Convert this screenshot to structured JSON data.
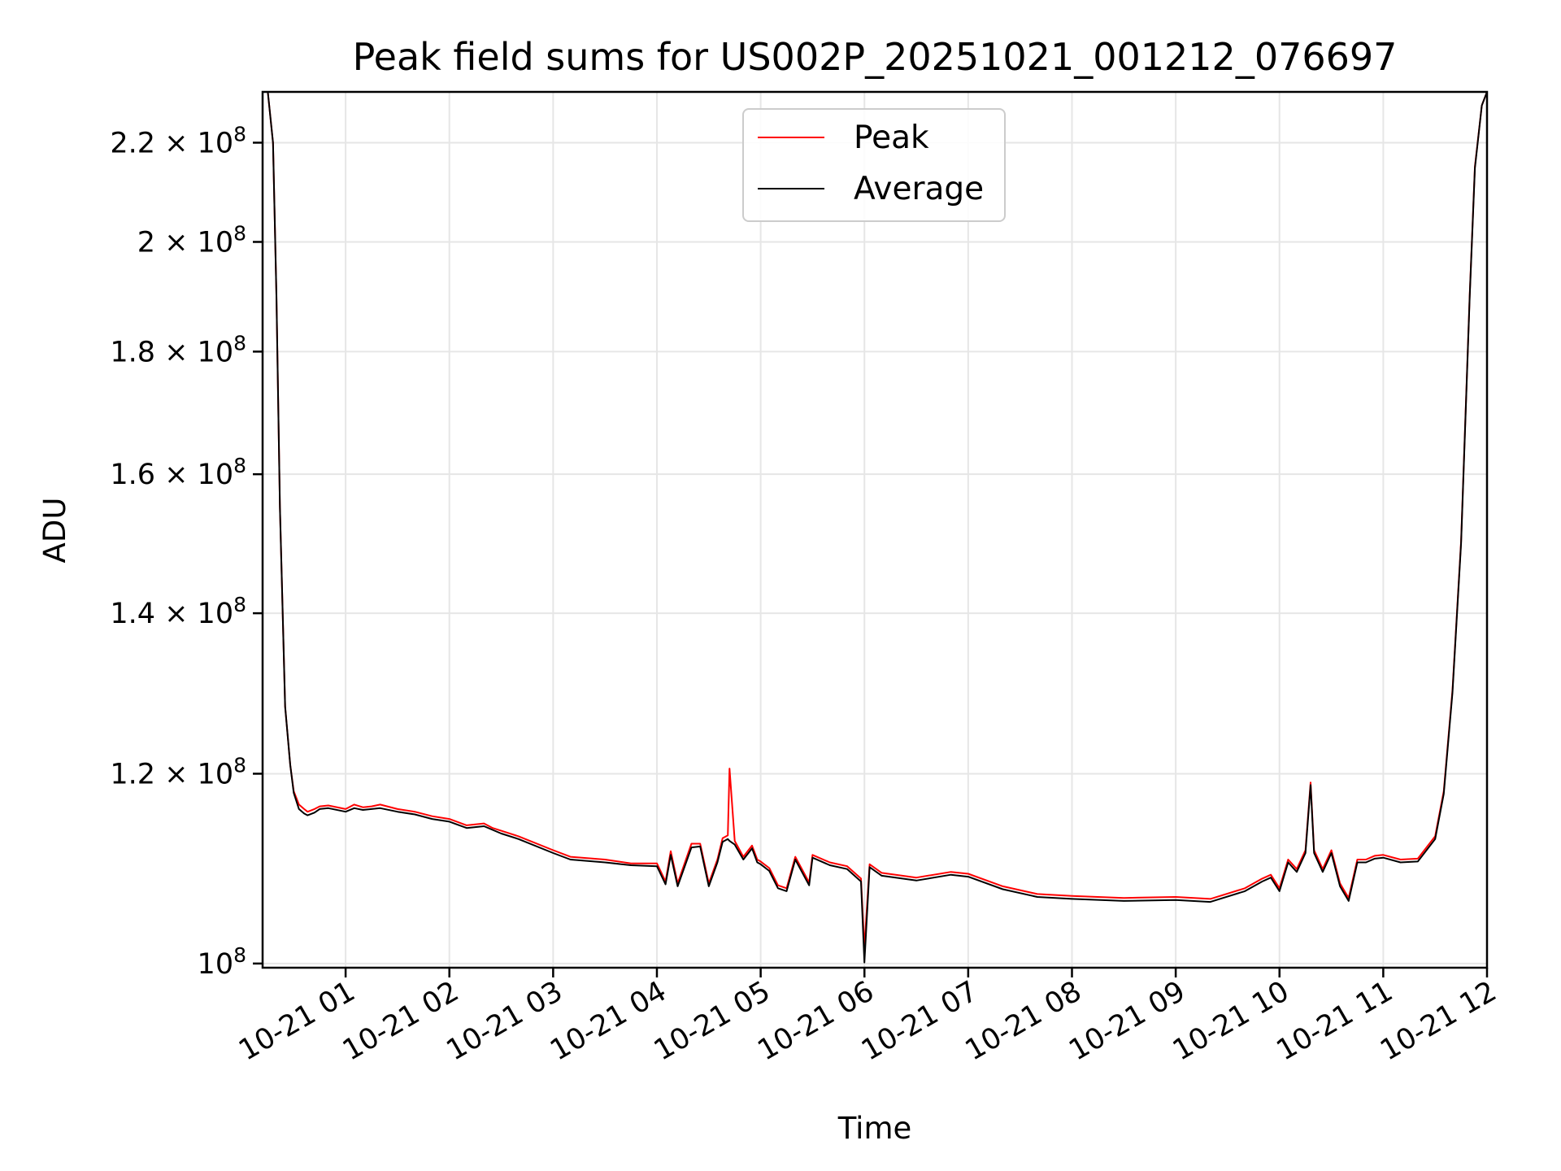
{
  "chart_data": {
    "type": "line",
    "title": "Peak field sums for US002P_20251021_001212_076697",
    "xlabel": "Time",
    "ylabel": "ADU",
    "y_scale": "log",
    "ylim": [
      99600000,
      231000000
    ],
    "xlim": [
      "10-21 00:12",
      "10-21 12:00"
    ],
    "x_ticks": [
      {
        "value": "10-21 01:00",
        "label": "10-21 01"
      },
      {
        "value": "10-21 02:00",
        "label": "10-21 02"
      },
      {
        "value": "10-21 03:00",
        "label": "10-21 03"
      },
      {
        "value": "10-21 04:00",
        "label": "10-21 04"
      },
      {
        "value": "10-21 05:00",
        "label": "10-21 05"
      },
      {
        "value": "10-21 06:00",
        "label": "10-21 06"
      },
      {
        "value": "10-21 07:00",
        "label": "10-21 07"
      },
      {
        "value": "10-21 08:00",
        "label": "10-21 08"
      },
      {
        "value": "10-21 09:00",
        "label": "10-21 09"
      },
      {
        "value": "10-21 10:00",
        "label": "10-21 10"
      },
      {
        "value": "10-21 11:00",
        "label": "10-21 11"
      },
      {
        "value": "10-21 12:00",
        "label": "10-21 12"
      }
    ],
    "y_ticks": [
      {
        "value": 100000000,
        "mant": "",
        "exp": "8"
      },
      {
        "value": 120000000,
        "mant": "1.2 × ",
        "exp": "8"
      },
      {
        "value": 140000000,
        "mant": "1.4 × ",
        "exp": "8"
      },
      {
        "value": 160000000,
        "mant": "1.6 × ",
        "exp": "8"
      },
      {
        "value": 180000000,
        "mant": "1.8 × ",
        "exp": "8"
      },
      {
        "value": 200000000,
        "mant": "2 × ",
        "exp": "8"
      },
      {
        "value": 220000000,
        "mant": "2.2 × ",
        "exp": "8"
      }
    ],
    "grid": true,
    "legend": "top-center",
    "series": [
      {
        "name": "Peak",
        "color": "#ff0000",
        "x": [
          "10-21 00:12",
          "10-21 00:15",
          "10-21 00:18",
          "10-21 00:20",
          "10-21 00:22",
          "10-21 00:25",
          "10-21 00:28",
          "10-21 00:30",
          "10-21 00:33",
          "10-21 00:36",
          "10-21 00:38",
          "10-21 00:42",
          "10-21 00:45",
          "10-21 00:50",
          "10-21 01:00",
          "10-21 01:05",
          "10-21 01:10",
          "10-21 01:15",
          "10-21 01:20",
          "10-21 01:30",
          "10-21 01:40",
          "10-21 01:50",
          "10-21 02:00",
          "10-21 02:10",
          "10-21 02:20",
          "10-21 02:25",
          "10-21 02:30",
          "10-21 02:40",
          "10-21 03:00",
          "10-21 03:10",
          "10-21 03:30",
          "10-21 03:45",
          "10-21 04:00",
          "10-21 04:05",
          "10-21 04:08",
          "10-21 04:12",
          "10-21 04:20",
          "10-21 04:25",
          "10-21 04:30",
          "10-21 04:35",
          "10-21 04:38",
          "10-21 04:41",
          "10-21 04:42",
          "10-21 04:45",
          "10-21 04:50",
          "10-21 04:55",
          "10-21 04:58",
          "10-21 05:00",
          "10-21 05:05",
          "10-21 05:10",
          "10-21 05:15",
          "10-21 05:20",
          "10-21 05:28",
          "10-21 05:30",
          "10-21 05:40",
          "10-21 05:50",
          "10-21 05:58",
          "10-21 06:00",
          "10-21 06:03",
          "10-21 06:10",
          "10-21 06:30",
          "10-21 06:50",
          "10-21 07:00",
          "10-21 07:20",
          "10-21 07:40",
          "10-21 08:00",
          "10-21 08:30",
          "10-21 09:00",
          "10-21 09:20",
          "10-21 09:40",
          "10-21 09:50",
          "10-21 09:55",
          "10-21 10:00",
          "10-21 10:05",
          "10-21 10:10",
          "10-21 10:15",
          "10-21 10:18",
          "10-21 10:20",
          "10-21 10:25",
          "10-21 10:30",
          "10-21 10:35",
          "10-21 10:40",
          "10-21 10:45",
          "10-21 10:50",
          "10-21 10:55",
          "10-21 11:00",
          "10-21 11:10",
          "10-21 11:20",
          "10-21 11:30",
          "10-21 11:35",
          "10-21 11:40",
          "10-21 11:45",
          "10-21 11:50",
          "10-21 11:53",
          "10-21 11:57",
          "10-21 12:00"
        ],
        "y": [
          231000000,
          231000000,
          220000000,
          190000000,
          155000000,
          128000000,
          121000000,
          118000000,
          116500000,
          116000000,
          115700000,
          116000000,
          116300000,
          116400000,
          116000000,
          116500000,
          116200000,
          116300000,
          116500000,
          116000000,
          115700000,
          115200000,
          114900000,
          114200000,
          114400000,
          113900000,
          113600000,
          113000000,
          111500000,
          110800000,
          110500000,
          110100000,
          110100000,
          108200000,
          111400000,
          108000000,
          112200000,
          112200000,
          108000000,
          110500000,
          112800000,
          113100000,
          120600000,
          112500000,
          110800000,
          112000000,
          110500000,
          110300000,
          109600000,
          107800000,
          107500000,
          110800000,
          108100000,
          111000000,
          110200000,
          109800000,
          108500000,
          101500000,
          110000000,
          109100000,
          108600000,
          109200000,
          109000000,
          107700000,
          106900000,
          106700000,
          106500000,
          106600000,
          106400000,
          107500000,
          108500000,
          108900000,
          107500000,
          110500000,
          109500000,
          111500000,
          119000000,
          111500000,
          109500000,
          111500000,
          108000000,
          106500000,
          110500000,
          110500000,
          110900000,
          111000000,
          110500000,
          110600000,
          113000000,
          118000000,
          130000000,
          150000000,
          190000000,
          215000000,
          228000000,
          231000000
        ]
      },
      {
        "name": "Average",
        "color": "#000000",
        "x": [
          "10-21 00:12",
          "10-21 00:15",
          "10-21 00:18",
          "10-21 00:20",
          "10-21 00:22",
          "10-21 00:25",
          "10-21 00:28",
          "10-21 00:30",
          "10-21 00:33",
          "10-21 00:36",
          "10-21 00:38",
          "10-21 00:42",
          "10-21 00:45",
          "10-21 00:50",
          "10-21 01:00",
          "10-21 01:05",
          "10-21 01:10",
          "10-21 01:15",
          "10-21 01:20",
          "10-21 01:30",
          "10-21 01:40",
          "10-21 01:50",
          "10-21 02:00",
          "10-21 02:10",
          "10-21 02:20",
          "10-21 02:25",
          "10-21 02:30",
          "10-21 02:40",
          "10-21 03:00",
          "10-21 03:10",
          "10-21 03:30",
          "10-21 03:45",
          "10-21 04:00",
          "10-21 04:05",
          "10-21 04:08",
          "10-21 04:12",
          "10-21 04:20",
          "10-21 04:25",
          "10-21 04:30",
          "10-21 04:35",
          "10-21 04:38",
          "10-21 04:41",
          "10-21 04:42",
          "10-21 04:45",
          "10-21 04:50",
          "10-21 04:55",
          "10-21 04:58",
          "10-21 05:00",
          "10-21 05:05",
          "10-21 05:10",
          "10-21 05:15",
          "10-21 05:20",
          "10-21 05:28",
          "10-21 05:30",
          "10-21 05:40",
          "10-21 05:50",
          "10-21 05:58",
          "10-21 06:00",
          "10-21 06:03",
          "10-21 06:10",
          "10-21 06:30",
          "10-21 06:50",
          "10-21 07:00",
          "10-21 07:20",
          "10-21 07:40",
          "10-21 08:00",
          "10-21 08:30",
          "10-21 09:00",
          "10-21 09:20",
          "10-21 09:40",
          "10-21 09:50",
          "10-21 09:55",
          "10-21 10:00",
          "10-21 10:05",
          "10-21 10:10",
          "10-21 10:15",
          "10-21 10:18",
          "10-21 10:20",
          "10-21 10:25",
          "10-21 10:30",
          "10-21 10:35",
          "10-21 10:40",
          "10-21 10:45",
          "10-21 10:50",
          "10-21 10:55",
          "10-21 11:00",
          "10-21 11:10",
          "10-21 11:20",
          "10-21 11:30",
          "10-21 11:35",
          "10-21 11:40",
          "10-21 11:45",
          "10-21 11:50",
          "10-21 11:53",
          "10-21 11:57",
          "10-21 12:00"
        ],
        "y": [
          231000000,
          231000000,
          220000000,
          190000000,
          155000000,
          128000000,
          121000000,
          117800000,
          116000000,
          115500000,
          115300000,
          115600000,
          116000000,
          116100000,
          115700000,
          116100000,
          115900000,
          116000000,
          116100000,
          115700000,
          115400000,
          114900000,
          114600000,
          113900000,
          114100000,
          113700000,
          113300000,
          112700000,
          111200000,
          110500000,
          110200000,
          109900000,
          109800000,
          107900000,
          111000000,
          107700000,
          111800000,
          111900000,
          107700000,
          110200000,
          112400000,
          112700000,
          112500000,
          112100000,
          110500000,
          111700000,
          110200000,
          110000000,
          109300000,
          107500000,
          107200000,
          110500000,
          107800000,
          110700000,
          109900000,
          109500000,
          108200000,
          100100000,
          109700000,
          108800000,
          108300000,
          108900000,
          108700000,
          107400000,
          106600000,
          106400000,
          106200000,
          106300000,
          106100000,
          107200000,
          108200000,
          108600000,
          107200000,
          110200000,
          109200000,
          111200000,
          118700000,
          111200000,
          109200000,
          111200000,
          107700000,
          106200000,
          110200000,
          110200000,
          110600000,
          110700000,
          110200000,
          110300000,
          112700000,
          117700000,
          129700000,
          149700000,
          189700000,
          214700000,
          228000000,
          231000000
        ]
      }
    ]
  }
}
